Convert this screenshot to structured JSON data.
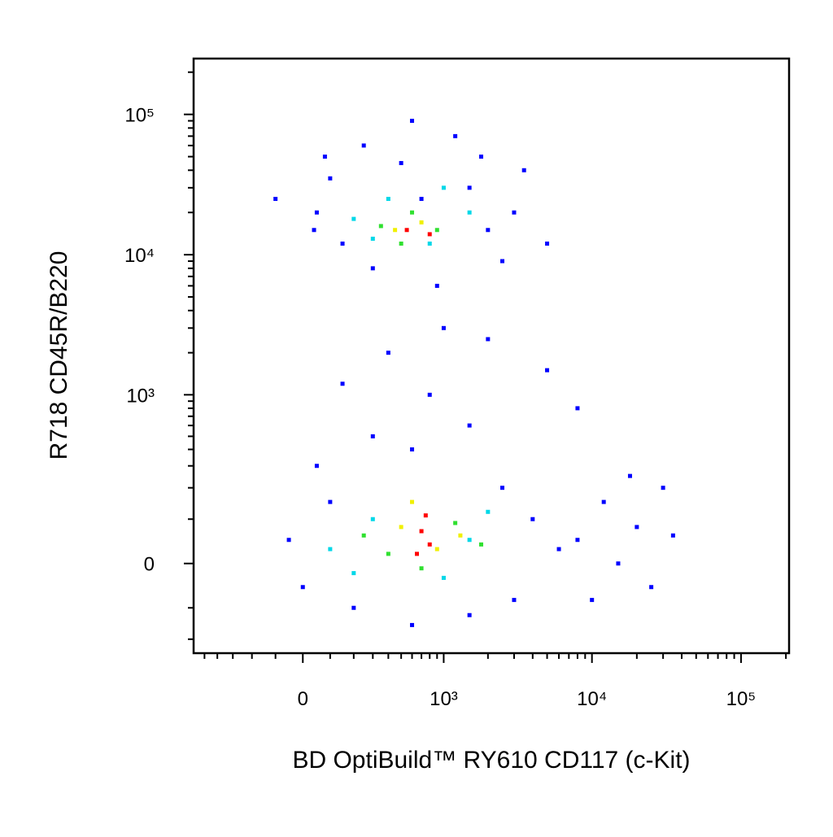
{
  "chart_data": {
    "type": "scatter",
    "xlabel": "BD OptiBuild™ RY610 CD117 (c-Kit)",
    "ylabel": "R718 CD45R/B220",
    "xscale": "biexponential",
    "yscale": "biexponential",
    "xlim": [
      -600,
      210000
    ],
    "ylim": [
      -260,
      250000
    ],
    "xticks": [
      0,
      {
        "value": 1000,
        "label": "10³"
      },
      {
        "value": 10000,
        "label": "10⁴"
      },
      {
        "value": 100000,
        "label": "10⁵"
      }
    ],
    "yticks": [
      0,
      {
        "value": 1000,
        "label": "10³"
      },
      {
        "value": 10000,
        "label": "10⁴"
      },
      {
        "value": 100000,
        "label": "10⁵"
      }
    ],
    "xminorticks": [
      -500,
      -400,
      -300,
      -200,
      -100,
      100,
      200,
      300,
      400,
      500,
      600,
      700,
      800,
      900,
      2000,
      3000,
      4000,
      5000,
      6000,
      7000,
      8000,
      9000,
      20000,
      30000,
      40000,
      50000,
      60000,
      70000,
      80000,
      90000,
      200000
    ],
    "yminorticks": [
      -200,
      -100,
      100,
      200,
      300,
      400,
      500,
      600,
      700,
      800,
      900,
      2000,
      3000,
      4000,
      5000,
      6000,
      7000,
      8000,
      9000,
      20000,
      30000,
      40000,
      50000,
      60000,
      70000,
      80000,
      90000,
      200000
    ],
    "series": [
      {
        "color": "#0000ff",
        "x": [
          50,
          100,
          150,
          250,
          300,
          500,
          700,
          900,
          1200,
          1500,
          2000,
          2500,
          3000,
          80,
          600,
          1800,
          -100,
          40,
          3500,
          5000,
          400,
          800,
          1500,
          300,
          2000,
          1000,
          600,
          5000,
          150,
          8000,
          -50,
          0,
          100,
          200,
          2500,
          3000,
          4000,
          50,
          1500,
          600,
          8000,
          12000,
          15000,
          20000,
          25000,
          30000,
          10000,
          18000,
          35000,
          6000
        ],
        "values": [
          20000,
          35000,
          12000,
          60000,
          8000,
          45000,
          25000,
          6000,
          70000,
          30000,
          15000,
          9000,
          20000,
          50000,
          90000,
          50000,
          25000,
          15000,
          40000,
          12000,
          2000,
          1000,
          600,
          500,
          2500,
          3000,
          400,
          1500,
          1200,
          800,
          50,
          -50,
          150,
          -100,
          200,
          -80,
          100,
          300,
          -120,
          -150,
          50,
          150,
          0,
          80,
          -50,
          200,
          -80,
          250,
          60,
          30
        ]
      },
      {
        "color": "#00d8e8",
        "x": [
          200,
          400,
          800,
          1500,
          300,
          1000,
          100,
          300,
          1000,
          2000,
          200,
          1500
        ],
        "values": [
          18000,
          25000,
          12000,
          20000,
          13000,
          30000,
          30,
          100,
          -30,
          120,
          -20,
          50
        ]
      },
      {
        "color": "#30e030",
        "x": [
          350,
          600,
          900,
          500,
          250,
          400,
          1200,
          1800,
          700
        ],
        "values": [
          16000,
          20000,
          15000,
          12000,
          60,
          20,
          90,
          40,
          -10
        ]
      },
      {
        "color": "#f0f000",
        "x": [
          450,
          700,
          500,
          900,
          1300,
          600
        ],
        "values": [
          15000,
          17000,
          80,
          30,
          60,
          150
        ]
      },
      {
        "color": "#ff0000",
        "x": [
          550,
          800,
          700,
          800,
          750,
          650
        ],
        "values": [
          15000,
          14000,
          70,
          40,
          110,
          20
        ]
      }
    ]
  }
}
